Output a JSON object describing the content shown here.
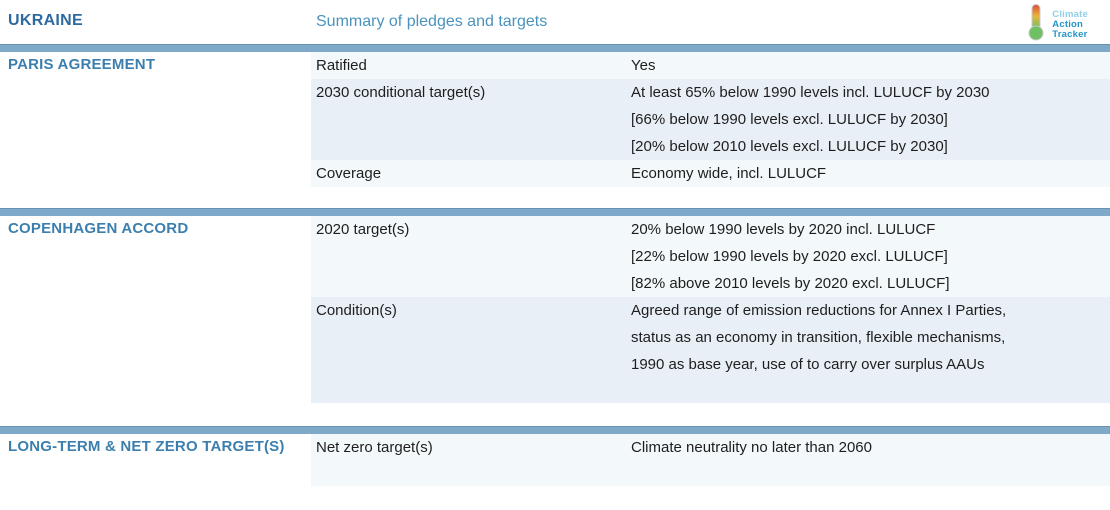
{
  "header": {
    "country": "UKRAINE",
    "subtitle": "Summary of pledges and targets",
    "logo": {
      "icon": "thermometer-icon",
      "line1": "Climate",
      "line2": "Action",
      "line3": "Tracker"
    }
  },
  "sections": [
    {
      "title": "PARIS AGREEMENT",
      "rows": [
        {
          "label": "Ratified",
          "values": [
            "Yes"
          ],
          "shade": "light"
        },
        {
          "label": "2030 conditional target(s)",
          "values": [
            "At least 65% below 1990 levels incl. LULUCF by 2030",
            "[66% below 1990 levels excl. LULUCF by 2030]",
            "[20% below 2010 levels excl. LULUCF by 2030]"
          ],
          "shade": "dark"
        },
        {
          "label": "Coverage",
          "values": [
            "Economy wide, incl. LULUCF"
          ],
          "shade": "light"
        }
      ],
      "gap_after": 1
    },
    {
      "title": "COPENHAGEN ACCORD",
      "rows": [
        {
          "label": "2020 target(s)",
          "values": [
            "20% below 1990 levels by 2020 incl. LULUCF",
            "[22% below 1990 levels by 2020 excl. LULUCF]",
            "[82% above 2010 levels by 2020 excl. LULUCF]"
          ],
          "shade": "light"
        },
        {
          "label": "Condition(s)",
          "values": [
            "Agreed range of emission reductions for Annex I Parties,",
            "status as an economy in transition, flexible mechanisms,",
            "1990 as base year, use of to carry over surplus AAUs"
          ],
          "shade": "dark",
          "extra_bottom": true
        }
      ],
      "gap_after": 2
    },
    {
      "title": "LONG-TERM & NET ZERO TARGET(S)",
      "rows": [
        {
          "label": "Net zero target(s)",
          "values": [
            "Climate neutrality no later than 2060"
          ],
          "shade": "light",
          "extra_bottom": true
        }
      ],
      "gap_after": 0
    }
  ],
  "colors": {
    "section_bar": "#7fa9c9",
    "section_bar_edge": "#6792b4",
    "country_title": "#2d6a9f",
    "subtitle": "#4a93be",
    "section_title": "#3c7fae",
    "row_light": "#f3f8fb",
    "row_dark": "#e9eff6",
    "body_text": "#1e1e1e",
    "logo_light_blue": "#90cfe9",
    "logo_blue": "#2496c6",
    "thermo_red": "#d94b3a",
    "thermo_yellow": "#e8b73c",
    "thermo_green": "#6fbf63"
  }
}
